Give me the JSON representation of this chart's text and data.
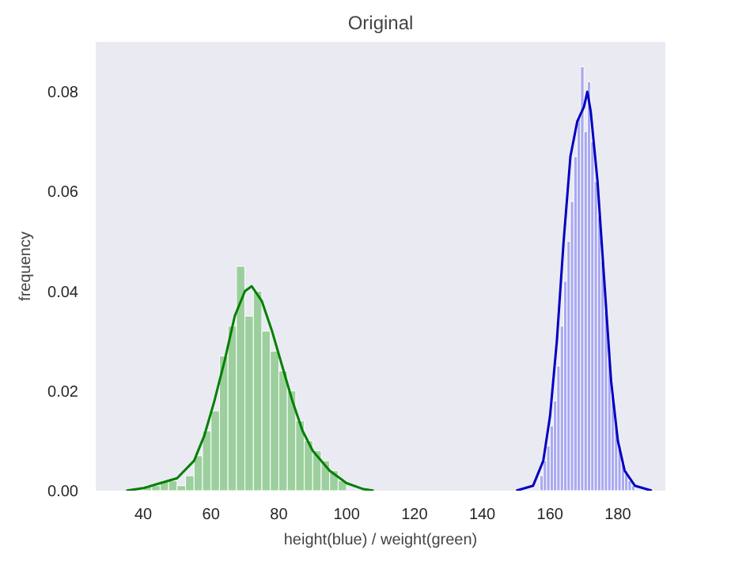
{
  "chart_data": {
    "type": "histogram",
    "title": "Original",
    "xlabel": "height(blue) / weight(green)",
    "ylabel": "frequency",
    "xlim": [
      26,
      194
    ],
    "xticks": [
      40,
      60,
      80,
      100,
      120,
      140,
      160,
      180
    ],
    "ylim": [
      0,
      0.09
    ],
    "yticks": [
      {
        "value": 0,
        "label": "0.00"
      },
      0.02,
      0.04,
      0.06,
      0.08
    ],
    "grid": false,
    "series": [
      {
        "color": "#8fca8f",
        "bins": [
          40,
          42.5,
          45,
          47.5,
          50,
          52.5,
          55,
          57.5,
          60,
          62.5,
          65,
          67.5,
          70,
          72.5,
          75,
          77.5,
          80,
          82.5,
          85,
          87.5,
          90,
          92.5,
          95,
          97.5,
          100
        ],
        "values": [
          0.001,
          0.001,
          0.002,
          0.002,
          0.001,
          0.003,
          0.007,
          0.012,
          0.016,
          0.027,
          0.033,
          0.045,
          0.035,
          0.04,
          0.032,
          0.028,
          0.024,
          0.02,
          0.014,
          0.01,
          0.008,
          0.006,
          0.004,
          0.002
        ]
      },
      {
        "type": "line",
        "color": "#008000",
        "x": [
          35,
          40,
          45,
          50,
          55,
          58,
          61,
          64,
          67,
          70,
          72,
          75,
          78,
          81,
          84,
          87,
          90,
          95,
          100,
          105,
          108
        ],
        "values": [
          0,
          0.0005,
          0.0015,
          0.0025,
          0.006,
          0.011,
          0.018,
          0.026,
          0.035,
          0.04,
          0.041,
          0.038,
          0.032,
          0.025,
          0.018,
          0.012,
          0.008,
          0.004,
          0.0015,
          0.0003,
          0
        ]
      },
      {
        "color": "#9d9ef0",
        "bins": [
          157,
          158,
          159,
          160,
          161,
          162,
          163,
          164,
          165,
          166,
          167,
          168,
          169,
          170,
          171,
          172,
          173,
          174,
          175,
          176,
          177,
          178,
          179,
          180,
          181,
          182,
          183,
          184,
          185
        ],
        "values": [
          0.003,
          0.006,
          0.009,
          0.013,
          0.018,
          0.025,
          0.033,
          0.042,
          0.05,
          0.058,
          0.067,
          0.075,
          0.085,
          0.072,
          0.082,
          0.07,
          0.062,
          0.055,
          0.046,
          0.036,
          0.027,
          0.019,
          0.013,
          0.009,
          0.006,
          0.004,
          0.002,
          0.001
        ]
      },
      {
        "type": "line",
        "color": "#0000c0",
        "x": [
          150,
          155,
          158,
          160,
          162,
          164,
          166,
          168,
          170,
          171,
          172,
          174,
          176,
          178,
          180,
          182,
          185,
          190
        ],
        "values": [
          0,
          0.001,
          0.006,
          0.015,
          0.03,
          0.05,
          0.067,
          0.074,
          0.077,
          0.08,
          0.076,
          0.062,
          0.042,
          0.022,
          0.01,
          0.004,
          0.001,
          0
        ]
      }
    ]
  }
}
